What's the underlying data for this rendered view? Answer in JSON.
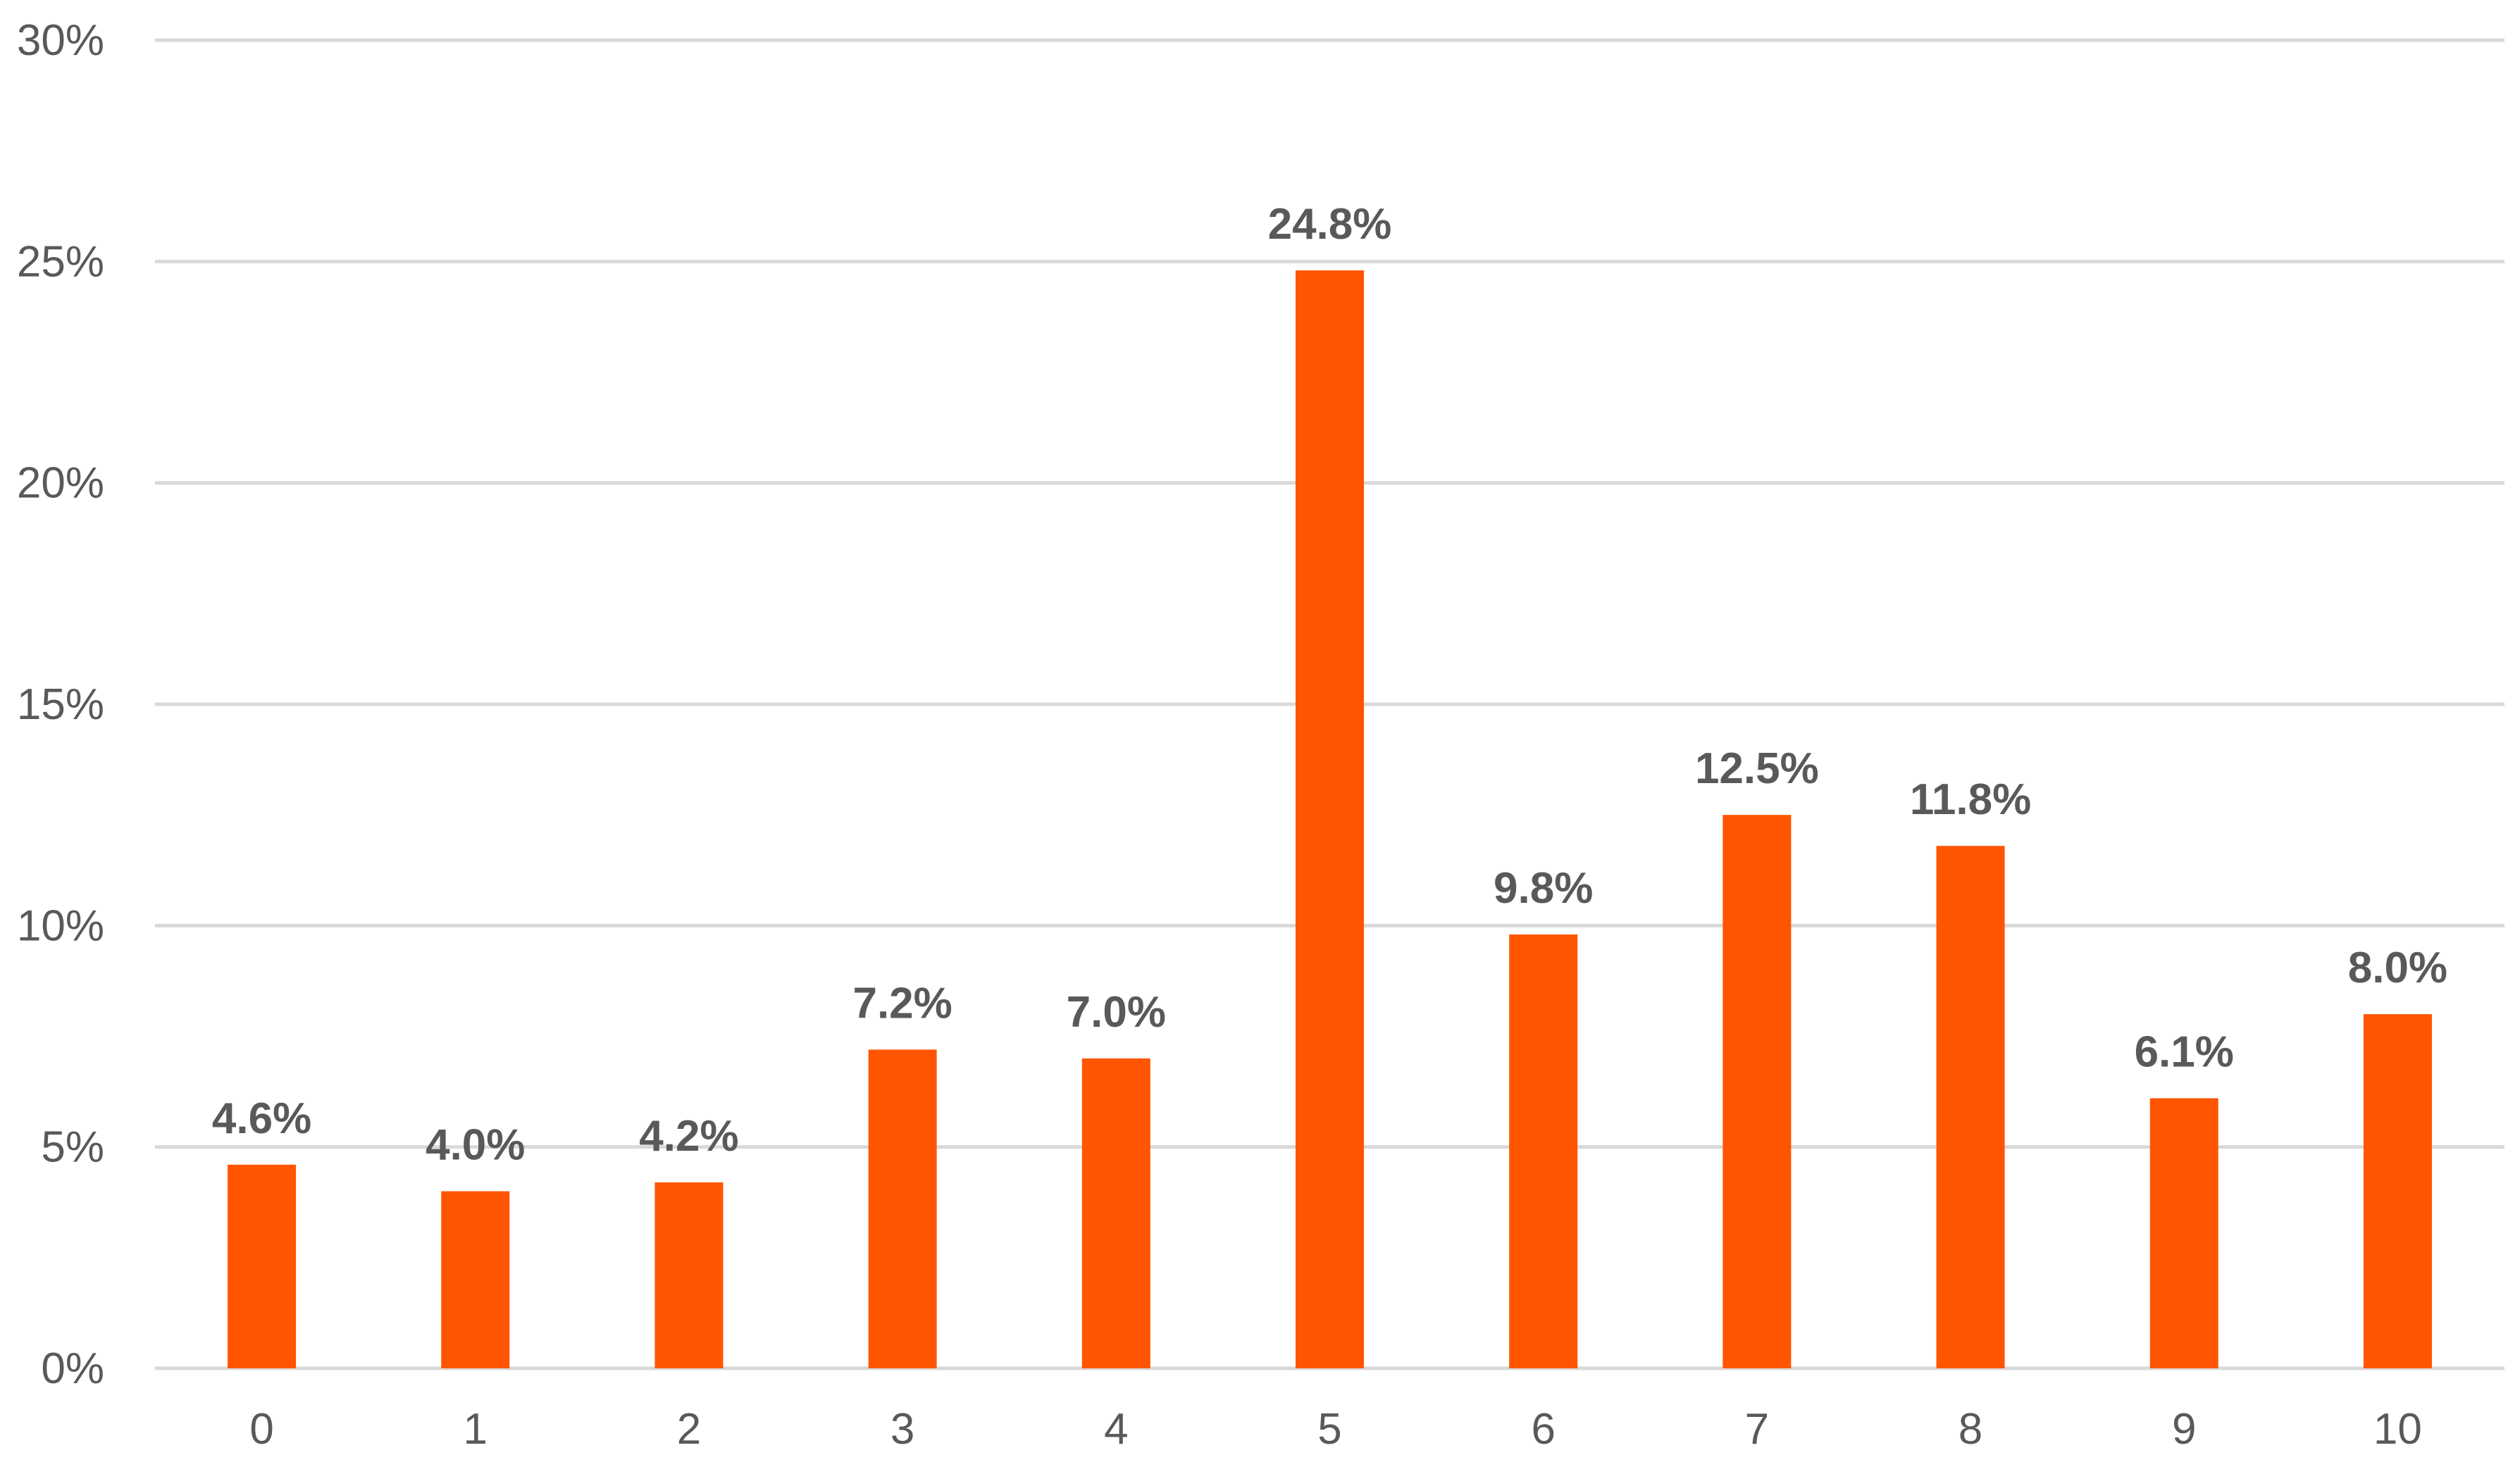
{
  "chart_data": {
    "type": "bar",
    "categories": [
      "0",
      "1",
      "2",
      "3",
      "4",
      "5",
      "6",
      "7",
      "8",
      "9",
      "10"
    ],
    "values": [
      4.6,
      4.0,
      4.2,
      7.2,
      7.0,
      24.8,
      9.8,
      12.5,
      11.8,
      6.1,
      8.0
    ],
    "data_labels": [
      "4.6%",
      "4.0%",
      "4.2%",
      "7.2%",
      "7.0%",
      "24.8%",
      "9.8%",
      "12.5%",
      "11.8%",
      "6.1%",
      "8.0%"
    ],
    "y_ticks": [
      0,
      5,
      10,
      15,
      20,
      25,
      30
    ],
    "y_tick_labels": [
      "0%",
      "5%",
      "10%",
      "15%",
      "20%",
      "25%",
      "30%"
    ],
    "ylim": [
      0,
      30
    ],
    "title": "",
    "xlabel": "",
    "ylabel": "",
    "grid": "horizontal",
    "legend": "none",
    "bar_color": "#FF5500",
    "gridline_color": "#D9D9D9",
    "text_color": "#595959"
  }
}
